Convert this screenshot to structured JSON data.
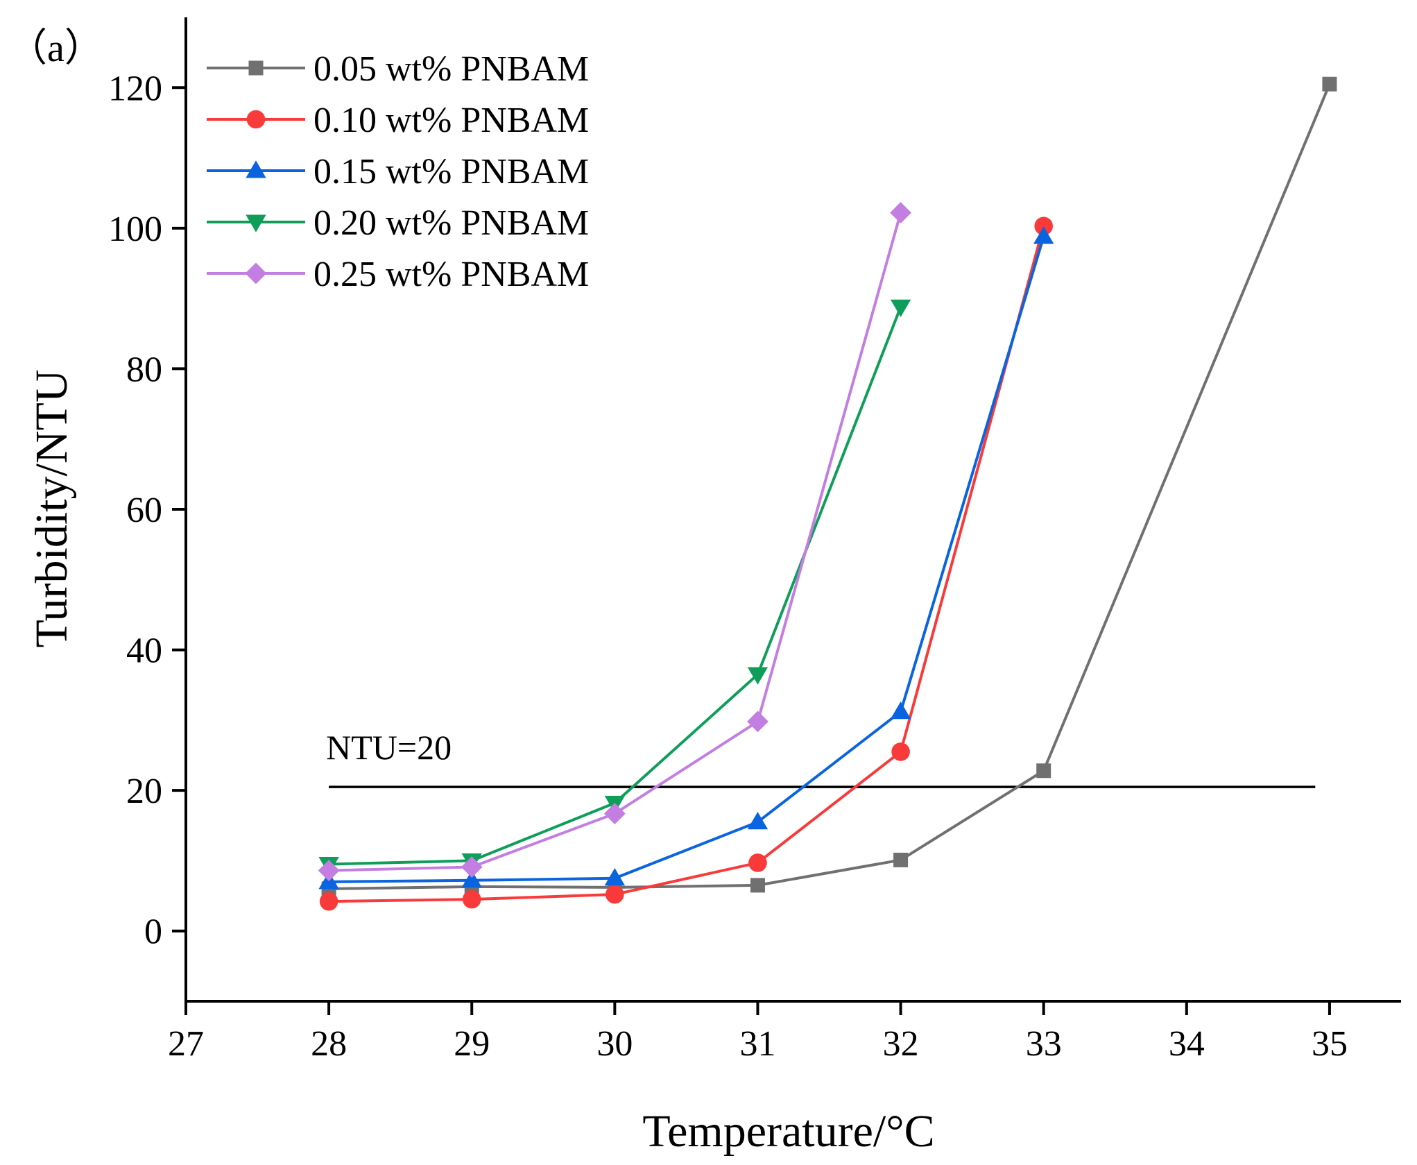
{
  "chart_data": {
    "type": "line",
    "panel_label": "（a）",
    "xlabel": "Temperature/°C",
    "ylabel": "Turbidity/NTU",
    "xlim": [
      27,
      35.5
    ],
    "ylim": [
      -10,
      130
    ],
    "xticks": [
      27,
      28,
      29,
      30,
      31,
      32,
      33,
      34,
      35
    ],
    "yticks": [
      0,
      20,
      40,
      60,
      80,
      100,
      120
    ],
    "grid": false,
    "legend_position": "top-left",
    "series": [
      {
        "name": "0.05 wt% PNBAM",
        "color": "#707070",
        "marker": "square",
        "x": [
          28,
          29,
          30,
          31,
          32,
          33,
          35
        ],
        "y": [
          6.0,
          6.3,
          6.2,
          6.5,
          10.1,
          22.8,
          120.5
        ]
      },
      {
        "name": "0.10 wt% PNBAM",
        "color": "#f83a3a",
        "marker": "circle",
        "x": [
          28,
          29,
          30,
          31,
          32,
          33
        ],
        "y": [
          4.2,
          4.5,
          5.2,
          9.7,
          25.5,
          100.3
        ]
      },
      {
        "name": "0.15 wt% PNBAM",
        "color": "#0a64e0",
        "marker": "triangle-up",
        "x": [
          28,
          29,
          30,
          31,
          32,
          33
        ],
        "y": [
          7.0,
          7.2,
          7.5,
          15.5,
          31.2,
          98.8
        ]
      },
      {
        "name": "0.20 wt% PNBAM",
        "color": "#0f9e5a",
        "marker": "triangle-down",
        "x": [
          28,
          29,
          30,
          31,
          32
        ],
        "y": [
          9.5,
          10.0,
          18.2,
          36.5,
          88.8
        ]
      },
      {
        "name": "0.25 wt% PNBAM",
        "color": "#c27ee0",
        "marker": "diamond",
        "x": [
          28,
          29,
          30,
          31,
          32
        ],
        "y": [
          8.6,
          9.1,
          16.7,
          29.8,
          102.2
        ]
      }
    ],
    "reference_line": {
      "label": "NTU=20",
      "y": 20.5,
      "x_range": [
        28,
        34.9
      ],
      "color": "#000000"
    }
  }
}
